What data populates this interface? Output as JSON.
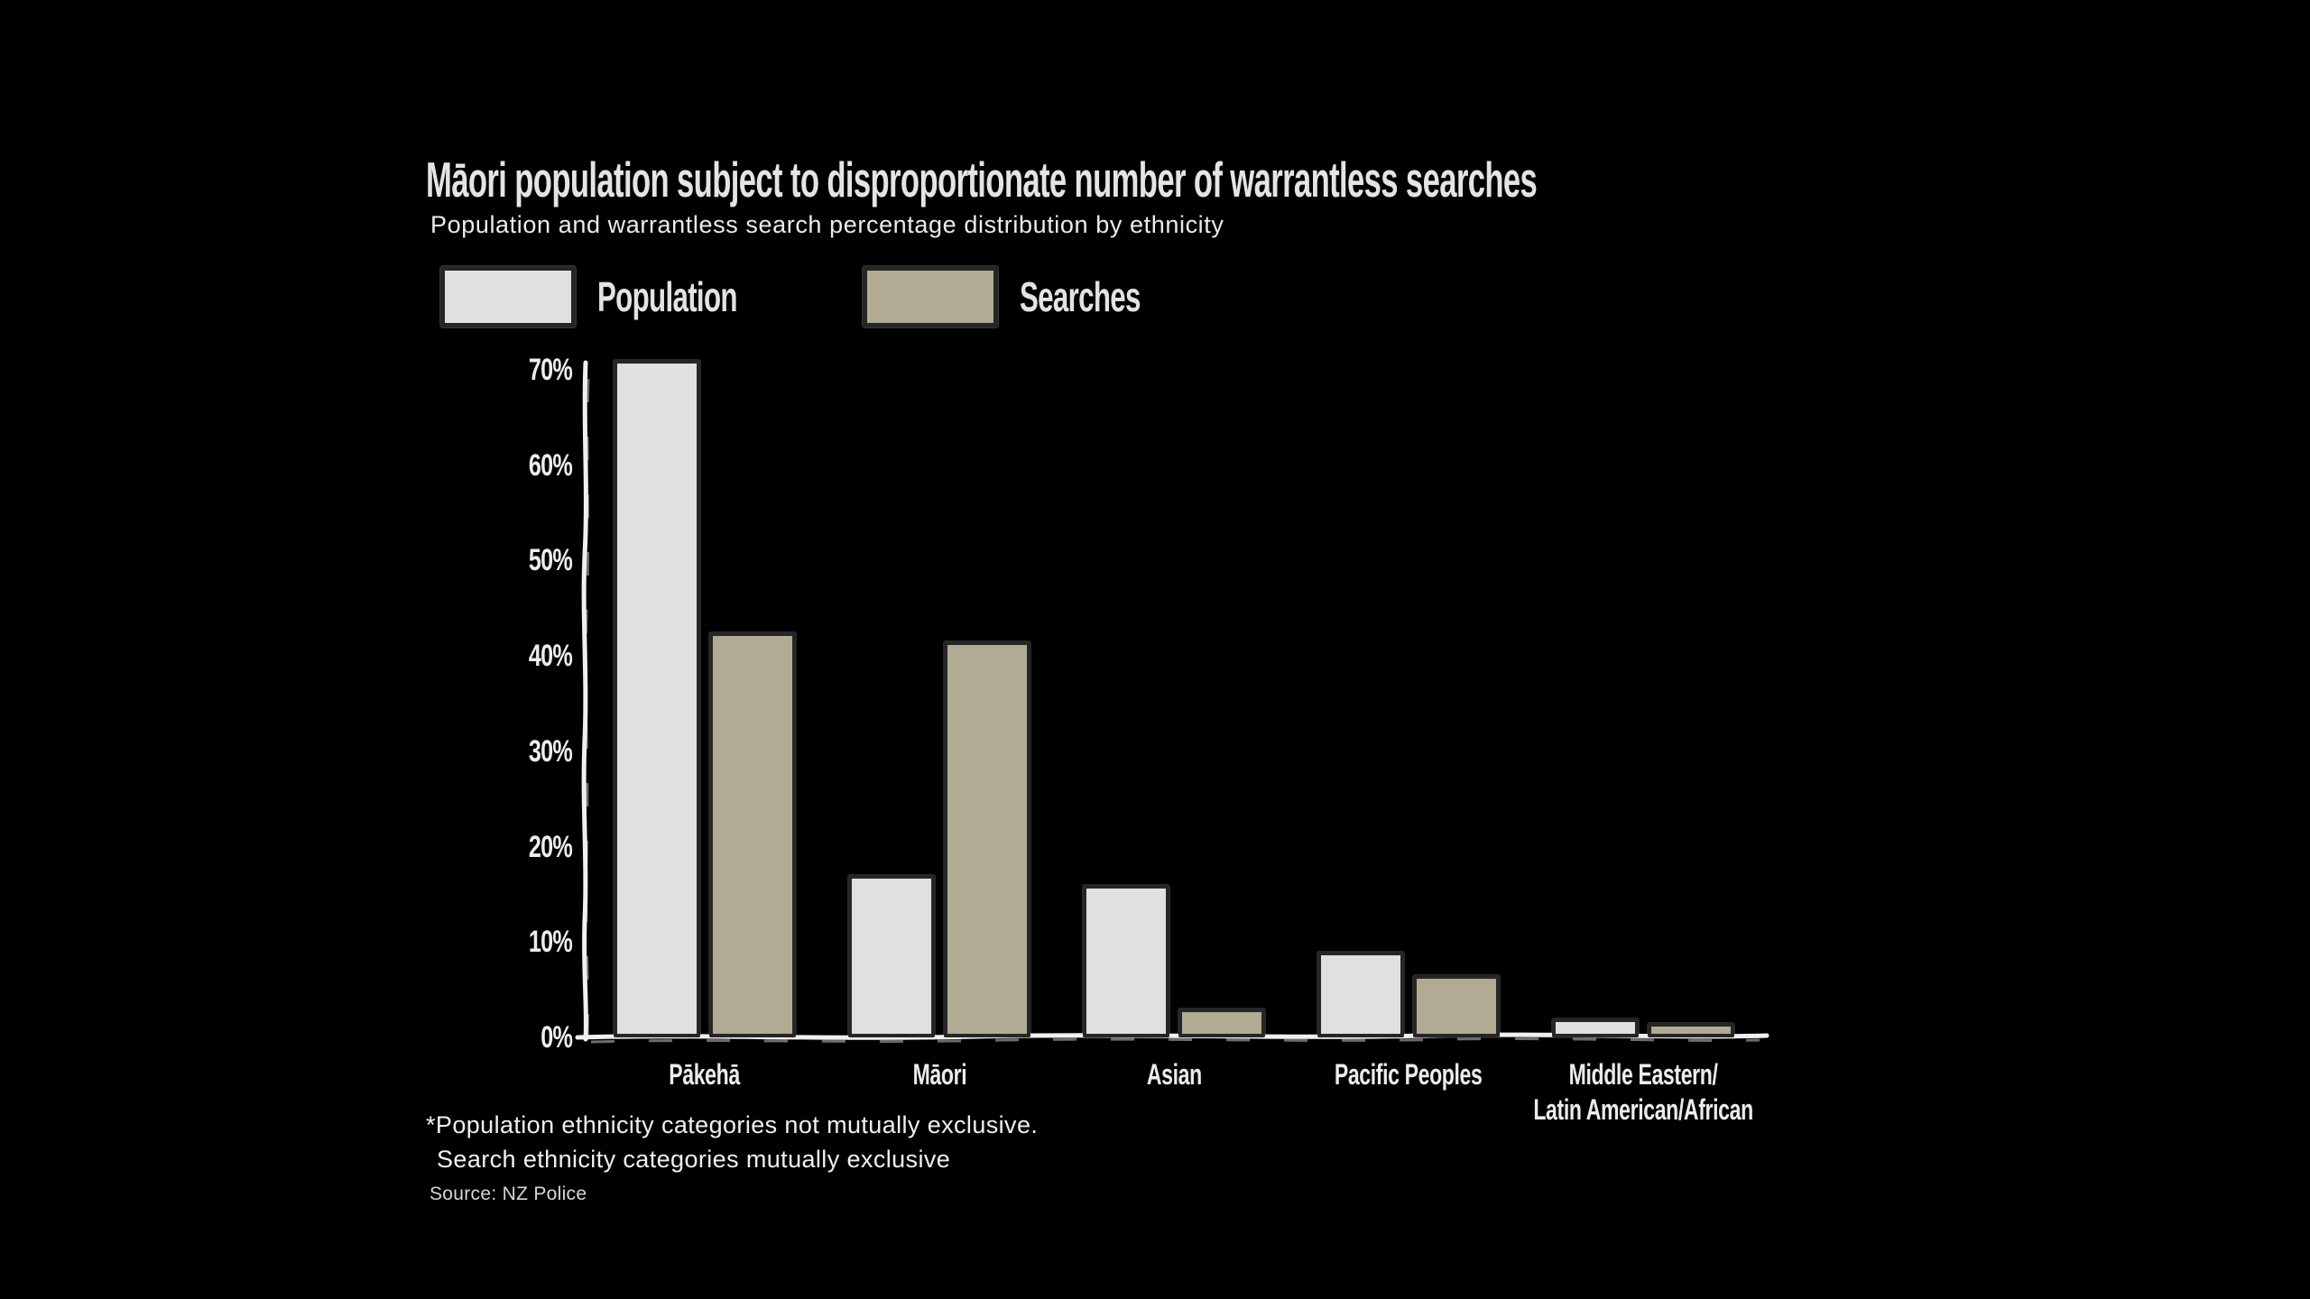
{
  "title": "Māori population subject to disproportionate number of warrantless searches",
  "subtitle": "Population and warrantless search percentage distribution by ethnicity",
  "legend": [
    {
      "label": "Population",
      "color": "#e0e0e0"
    },
    {
      "label": "Searches",
      "color": "#b1ab94"
    }
  ],
  "footnote": {
    "line1": "*Population ethnicity categories not mutually exclusive.",
    "line2": "Search ethnicity categories mutually exclusive"
  },
  "source": "Source: NZ Police",
  "colors": {
    "background": "#000000",
    "bar_population": "#e0e0e0",
    "bar_searches": "#b1ab94",
    "bar_border": "#262626",
    "axis": "#f0f0f0",
    "text": "#ececec"
  },
  "chart_data": {
    "type": "bar",
    "categories": [
      "Pākehā",
      "Māori",
      "Asian",
      "Pacific Peoples",
      "Middle Eastern/\nLatin American/African"
    ],
    "series": [
      {
        "name": "Population",
        "values": [
          71,
          17,
          16,
          9,
          2
        ]
      },
      {
        "name": "Searches",
        "values": [
          42.5,
          41.5,
          3,
          6.5,
          1.5
        ]
      }
    ],
    "title": "Māori population subject to disproportionate number of warrantless searches",
    "xlabel": "",
    "ylabel": "",
    "y_ticks": [
      "0%",
      "10%",
      "20%",
      "30%",
      "40%",
      "50%",
      "60%",
      "70%"
    ],
    "ylim": [
      0,
      70
    ],
    "grid": false,
    "legend_position": "top-left",
    "style": "hand-drawn-sketch"
  }
}
